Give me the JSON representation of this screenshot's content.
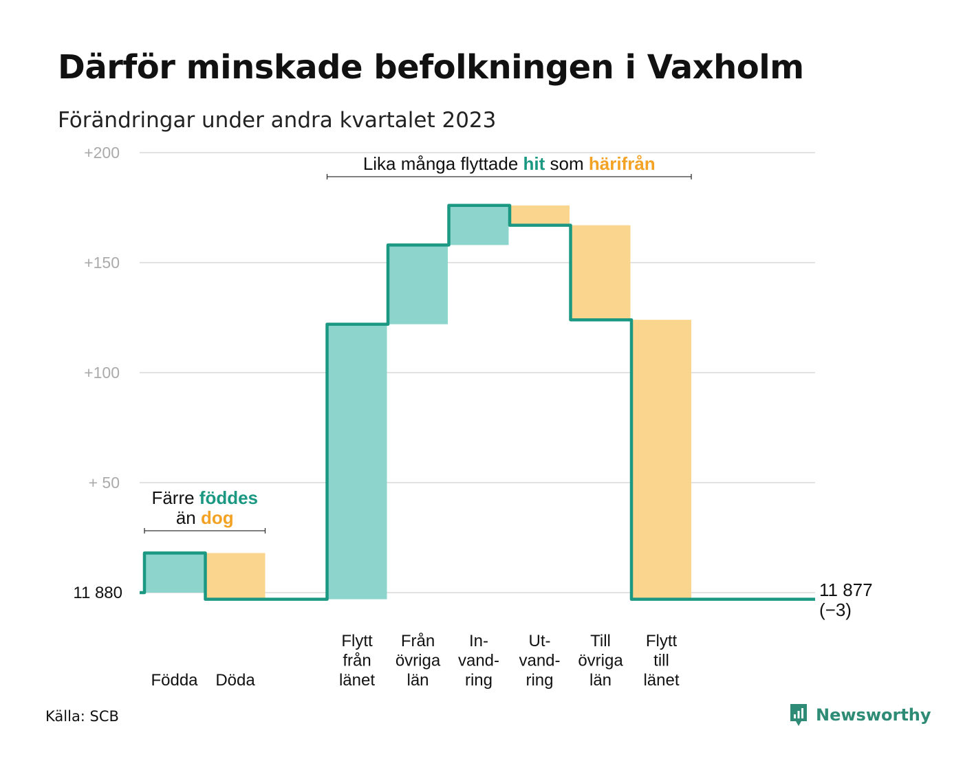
{
  "title": "Därför minskade befolkningen i Vaxholm",
  "subtitle": "Förändringar under andra kvartalet 2023",
  "source": "Källa: SCB",
  "brand": "Newsworthy",
  "colors": {
    "line": "#1a9882",
    "increase_fill": "#8dd5cc",
    "decrease_fill": "#fad58d",
    "increase_text": "#1a9882",
    "decrease_text": "#f3a224",
    "grid": "#e2e2e2",
    "tick": "#aaaaaa"
  },
  "chart_data": {
    "type": "waterfall",
    "y_ticks": [
      {
        "value": 0,
        "label": ""
      },
      {
        "value": 50,
        "label": "+  50"
      },
      {
        "value": 100,
        "label": "+100"
      },
      {
        "value": 150,
        "label": "+150"
      },
      {
        "value": 200,
        "label": "+200"
      }
    ],
    "ylim": [
      -4,
      200
    ],
    "start": {
      "value": 0,
      "label": "11   880"
    },
    "end": {
      "value": -3,
      "label": "11 877",
      "change_label": "(−3)"
    },
    "steps": [
      {
        "label": [
          "Födda"
        ],
        "value": 18
      },
      {
        "label": [
          "Döda"
        ],
        "value": -21
      },
      {
        "label": [],
        "value": 0
      },
      {
        "label": [
          "Flytt",
          "från",
          "länet"
        ],
        "value": 125
      },
      {
        "label": [
          "Från",
          "övriga",
          "län"
        ],
        "value": 36
      },
      {
        "label": [
          "In-",
          "vand-",
          "ring"
        ],
        "value": 18
      },
      {
        "label": [
          "Ut-",
          "vand-",
          "ring"
        ],
        "value": -9
      },
      {
        "label": [
          "Till",
          "övriga",
          "län"
        ],
        "value": -43
      },
      {
        "label": [
          "Flytt",
          "till",
          "länet"
        ],
        "value": -127
      }
    ],
    "annotations": [
      {
        "lines": [
          [
            {
              "text": "Färre ",
              "style": "plain"
            },
            {
              "text": "föddes",
              "style": "increase"
            }
          ],
          [
            {
              "text": "än ",
              "style": "plain"
            },
            {
              "text": "dog",
              "style": "decrease"
            }
          ]
        ],
        "from_step": 0,
        "to_step": 1
      },
      {
        "lines": [
          [
            {
              "text": "Lika många flyttade ",
              "style": "plain"
            },
            {
              "text": "hit",
              "style": "increase"
            },
            {
              "text": "  som ",
              "style": "plain"
            },
            {
              "text": "härifrån",
              "style": "decrease"
            }
          ]
        ],
        "from_step": 3,
        "to_step": 8
      }
    ]
  }
}
